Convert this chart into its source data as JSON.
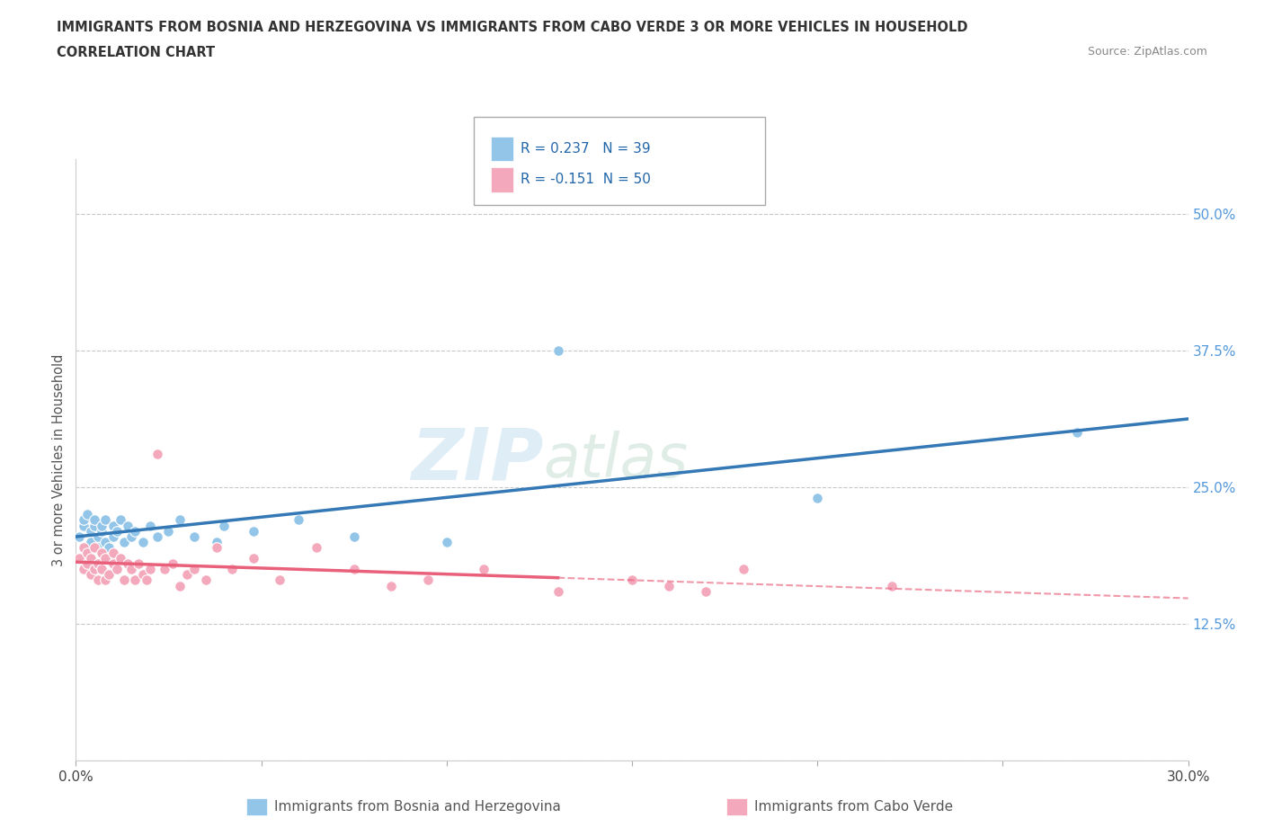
{
  "title_line1": "IMMIGRANTS FROM BOSNIA AND HERZEGOVINA VS IMMIGRANTS FROM CABO VERDE 3 OR MORE VEHICLES IN HOUSEHOLD",
  "title_line2": "CORRELATION CHART",
  "source": "Source: ZipAtlas.com",
  "ylabel": "3 or more Vehicles in Household",
  "xmin": 0.0,
  "xmax": 0.3,
  "ymin": 0.0,
  "ymax": 0.55,
  "bosnia_R": 0.237,
  "bosnia_N": 39,
  "caboverde_R": -0.151,
  "caboverde_N": 50,
  "bosnia_color": "#92C5E8",
  "caboverde_color": "#F4A8BC",
  "bosnia_line_color": "#3478B5",
  "caboverde_line_color": "#E8607A",
  "bosnia_x": [
    0.001,
    0.002,
    0.002,
    0.003,
    0.003,
    0.004,
    0.004,
    0.005,
    0.005,
    0.006,
    0.006,
    0.007,
    0.007,
    0.008,
    0.008,
    0.009,
    0.01,
    0.01,
    0.011,
    0.012,
    0.013,
    0.014,
    0.015,
    0.016,
    0.018,
    0.02,
    0.022,
    0.025,
    0.028,
    0.032,
    0.038,
    0.04,
    0.048,
    0.06,
    0.075,
    0.1,
    0.13,
    0.2,
    0.27
  ],
  "bosnia_y": [
    0.205,
    0.215,
    0.22,
    0.195,
    0.225,
    0.2,
    0.21,
    0.215,
    0.22,
    0.195,
    0.205,
    0.21,
    0.215,
    0.2,
    0.22,
    0.195,
    0.205,
    0.215,
    0.21,
    0.22,
    0.2,
    0.215,
    0.205,
    0.21,
    0.2,
    0.215,
    0.205,
    0.21,
    0.22,
    0.205,
    0.2,
    0.215,
    0.21,
    0.22,
    0.205,
    0.2,
    0.375,
    0.24,
    0.3
  ],
  "caboverde_x": [
    0.001,
    0.002,
    0.002,
    0.003,
    0.003,
    0.004,
    0.004,
    0.005,
    0.005,
    0.006,
    0.006,
    0.007,
    0.007,
    0.008,
    0.008,
    0.009,
    0.01,
    0.01,
    0.011,
    0.012,
    0.013,
    0.014,
    0.015,
    0.016,
    0.017,
    0.018,
    0.019,
    0.02,
    0.022,
    0.024,
    0.026,
    0.028,
    0.03,
    0.032,
    0.035,
    0.038,
    0.042,
    0.048,
    0.055,
    0.065,
    0.075,
    0.085,
    0.095,
    0.11,
    0.13,
    0.15,
    0.16,
    0.17,
    0.18,
    0.22
  ],
  "caboverde_y": [
    0.185,
    0.195,
    0.175,
    0.18,
    0.19,
    0.17,
    0.185,
    0.175,
    0.195,
    0.165,
    0.18,
    0.19,
    0.175,
    0.185,
    0.165,
    0.17,
    0.18,
    0.19,
    0.175,
    0.185,
    0.165,
    0.18,
    0.175,
    0.165,
    0.18,
    0.17,
    0.165,
    0.175,
    0.28,
    0.175,
    0.18,
    0.16,
    0.17,
    0.175,
    0.165,
    0.195,
    0.175,
    0.185,
    0.165,
    0.195,
    0.175,
    0.16,
    0.165,
    0.175,
    0.155,
    0.165,
    0.16,
    0.155,
    0.175,
    0.16
  ],
  "watermark_zip": "ZIP",
  "watermark_atlas": "atlas",
  "legend_label1": "R = 0.237   N = 39",
  "legend_label2": "R = -0.151  N = 50",
  "bottom_label1": "Immigrants from Bosnia and Herzegovina",
  "bottom_label2": "Immigrants from Cabo Verde"
}
